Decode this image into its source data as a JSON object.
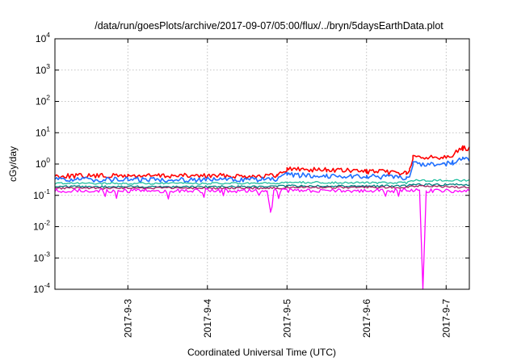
{
  "chart_data": {
    "type": "line",
    "title": "/data/run/goesPlots/archive/2017-09-07/05:00/flux/../bryn/5daysEarthData.plot",
    "xlabel": "Coordinated Universal Time (UTC)",
    "ylabel": "cGy/day",
    "y_scale": "log",
    "ylim": [
      0.0001,
      10000
    ],
    "y_ticks": [
      {
        "value": 0.0001,
        "base": "10",
        "exp": "-4"
      },
      {
        "value": 0.001,
        "base": "10",
        "exp": "-3"
      },
      {
        "value": 0.01,
        "base": "10",
        "exp": "-2"
      },
      {
        "value": 0.1,
        "base": "10",
        "exp": "-1"
      },
      {
        "value": 1,
        "base": "10",
        "exp": "0"
      },
      {
        "value": 10,
        "base": "10",
        "exp": "1"
      },
      {
        "value": 100,
        "base": "10",
        "exp": "2"
      },
      {
        "value": 1000,
        "base": "10",
        "exp": "3"
      },
      {
        "value": 10000,
        "base": "10",
        "exp": "4"
      }
    ],
    "x_range": [
      "2017-09-02 02:00",
      "2017-09-07 07:00"
    ],
    "x_ticks": [
      {
        "label": "2017-9-3",
        "time": "2017-09-03 00:00"
      },
      {
        "label": "2017-9-4",
        "time": "2017-09-04 00:00"
      },
      {
        "label": "2017-9-5",
        "time": "2017-09-05 00:00"
      },
      {
        "label": "2017-9-6",
        "time": "2017-09-06 00:00"
      },
      {
        "label": "2017-9-7",
        "time": "2017-09-07 00:00"
      }
    ],
    "grid": true,
    "series": [
      {
        "color": "#ff0000",
        "points": [
          [
            "2017-09-02 02:00",
            0.42
          ],
          [
            "2017-09-03 00:00",
            0.42
          ],
          [
            "2017-09-04 00:00",
            0.42
          ],
          [
            "2017-09-04 21:00",
            0.42
          ],
          [
            "2017-09-05 00:00",
            0.7
          ],
          [
            "2017-09-05 12:00",
            0.65
          ],
          [
            "2017-09-06 00:00",
            0.58
          ],
          [
            "2017-09-06 12:00",
            0.52
          ],
          [
            "2017-09-06 13:00",
            0.62
          ],
          [
            "2017-09-06 14:00",
            1.6
          ],
          [
            "2017-09-06 23:00",
            1.7
          ],
          [
            "2017-09-07 02:00",
            2.0
          ],
          [
            "2017-09-07 05:00",
            3.2
          ],
          [
            "2017-09-07 07:00",
            3.0
          ]
        ]
      },
      {
        "color": "#1f6fff",
        "points": [
          [
            "2017-09-02 02:00",
            0.32
          ],
          [
            "2017-09-03 00:00",
            0.32
          ],
          [
            "2017-09-04 00:00",
            0.32
          ],
          [
            "2017-09-04 21:00",
            0.32
          ],
          [
            "2017-09-05 00:00",
            0.45
          ],
          [
            "2017-09-05 12:00",
            0.42
          ],
          [
            "2017-09-06 00:00",
            0.4
          ],
          [
            "2017-09-06 12:00",
            0.37
          ],
          [
            "2017-09-06 13:00",
            0.42
          ],
          [
            "2017-09-06 14:00",
            1.0
          ],
          [
            "2017-09-06 23:00",
            1.0
          ],
          [
            "2017-09-07 02:00",
            1.1
          ],
          [
            "2017-09-07 05:00",
            1.45
          ],
          [
            "2017-09-07 07:00",
            1.4
          ]
        ]
      },
      {
        "color": "#20c0a0",
        "points": [
          [
            "2017-09-02 02:00",
            0.24
          ],
          [
            "2017-09-04 21:00",
            0.24
          ],
          [
            "2017-09-05 00:00",
            0.26
          ],
          [
            "2017-09-06 12:00",
            0.25
          ],
          [
            "2017-09-06 14:00",
            0.3
          ],
          [
            "2017-09-07 07:00",
            0.3
          ]
        ]
      },
      {
        "color": "#008080",
        "points": [
          [
            "2017-09-02 02:00",
            0.19
          ],
          [
            "2017-09-04 21:00",
            0.19
          ],
          [
            "2017-09-05 00:00",
            0.2
          ],
          [
            "2017-09-06 12:00",
            0.2
          ],
          [
            "2017-09-06 14:00",
            0.22
          ],
          [
            "2017-09-07 07:00",
            0.22
          ]
        ]
      },
      {
        "color": "#a02060",
        "points": [
          [
            "2017-09-02 02:00",
            0.17
          ],
          [
            "2017-09-04 21:00",
            0.17
          ],
          [
            "2017-09-05 00:00",
            0.18
          ],
          [
            "2017-09-06 12:00",
            0.18
          ],
          [
            "2017-09-06 14:00",
            0.2
          ],
          [
            "2017-09-07 07:00",
            0.18
          ]
        ]
      },
      {
        "color": "#ff00ff",
        "points": [
          [
            "2017-09-02 02:00",
            0.14
          ],
          [
            "2017-09-04 18:00",
            0.14
          ],
          [
            "2017-09-04 19:00",
            0.03
          ],
          [
            "2017-09-04 20:00",
            0.14
          ],
          [
            "2017-09-06 16:00",
            0.14
          ],
          [
            "2017-09-06 17:00",
            0.0001
          ],
          [
            "2017-09-06 18:00",
            0.14
          ],
          [
            "2017-09-07 07:00",
            0.14
          ]
        ]
      }
    ]
  }
}
